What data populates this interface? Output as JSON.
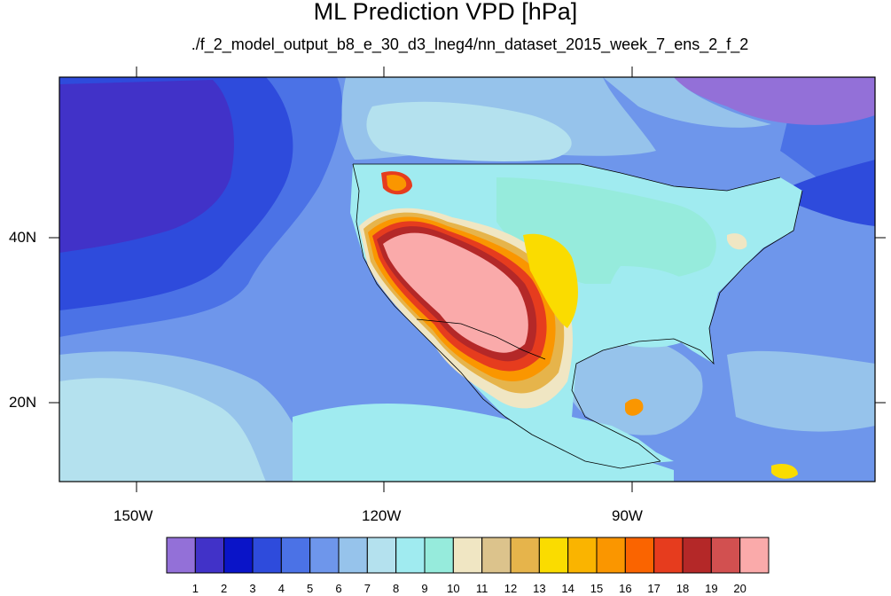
{
  "title": "ML Prediction VPD [hPa]",
  "subtitle": "./f_2_model_output_b8_e_30_d3_lneg4/nn_dataset_2015_week_7_ens_2_f_2",
  "axes": {
    "lon_labels": [
      "150W",
      "120W",
      "90W"
    ],
    "lat_labels": [
      "40N",
      "20N"
    ]
  },
  "colorbar": {
    "labels": [
      "1",
      "2",
      "3",
      "4",
      "5",
      "6",
      "7",
      "8",
      "9",
      "10",
      "11",
      "12",
      "13",
      "14",
      "15",
      "16",
      "17",
      "18",
      "19",
      "20"
    ],
    "colors": [
      "#9370d8",
      "#4132c8",
      "#0a14c8",
      "#2e4bdc",
      "#4b72e6",
      "#6e96eb",
      "#96c3eb",
      "#b4e1ee",
      "#a0ebf0",
      "#96ebdc",
      "#f0e6c3",
      "#dcc38c",
      "#e6b44b",
      "#fadc00",
      "#fab400",
      "#fa9600",
      "#fa6400",
      "#e63c1e",
      "#b42828",
      "#d25050",
      "#faaaaa"
    ]
  },
  "chart_data": {
    "type": "heatmap",
    "variable": "VPD",
    "units": "hPa",
    "lon_range": [
      -160,
      -62
    ],
    "lat_range": [
      11,
      60
    ],
    "contour_levels": [
      1,
      2,
      3,
      4,
      5,
      6,
      7,
      8,
      9,
      10,
      11,
      12,
      13,
      14,
      15,
      16,
      17,
      18,
      19,
      20
    ]
  }
}
